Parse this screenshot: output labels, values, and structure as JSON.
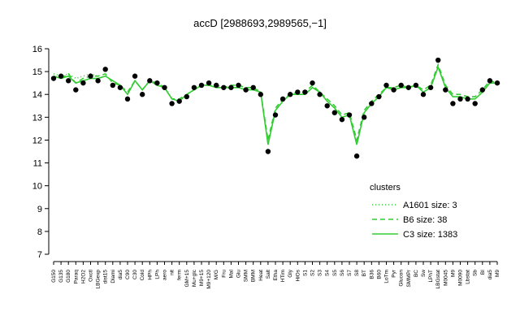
{
  "chart_data": {
    "type": "line",
    "title": "accD [2988693,2989565,−1]",
    "categories": [
      "G150",
      "G135",
      "G180",
      "Paraq",
      "H2O2",
      "Oxctl",
      "LBGexp",
      "dist15",
      "Diami",
      "dia5",
      "C90",
      "C30",
      "Cold",
      "HPh",
      "LPh",
      "aero",
      "nit",
      "ferm",
      "GM+15",
      "Mu+glc",
      "M9+15",
      "M9+120",
      "M/G",
      "Fru",
      "Mal",
      "Glu",
      "SMM",
      "BMM",
      "Heat",
      "Salt",
      "Etha",
      "HTim",
      "Gly",
      "HiOs",
      "S1",
      "S2",
      "S3",
      "S4",
      "S5",
      "S6",
      "S7",
      "S8",
      "BT",
      "B36",
      "B60",
      "LoTm",
      "Pyr",
      "Glucon",
      "SMMPr",
      "BC",
      "Sw",
      "LPhT",
      "LBGstat",
      "M0045",
      "M9",
      "M0090",
      "Lbstat",
      "Sb",
      "BI",
      "dia5",
      "M9"
    ],
    "points": {
      "color": "#000000",
      "values": [
        14.7,
        14.8,
        14.6,
        14.2,
        14.5,
        14.8,
        14.6,
        15.1,
        14.4,
        14.3,
        13.8,
        14.8,
        14.0,
        14.6,
        14.5,
        14.3,
        13.6,
        13.7,
        13.9,
        14.3,
        14.4,
        14.5,
        14.4,
        14.3,
        14.3,
        14.4,
        14.2,
        14.3,
        14.0,
        11.5,
        13.1,
        13.8,
        14.0,
        14.1,
        14.1,
        14.5,
        14.0,
        13.5,
        13.2,
        12.9,
        13.1,
        11.3,
        13.0,
        13.6,
        13.9,
        14.4,
        14.2,
        14.4,
        14.3,
        14.4,
        14.0,
        14.3,
        15.5,
        14.2,
        13.6,
        13.8,
        13.8,
        13.6,
        14.2,
        14.6,
        14.5
      ]
    },
    "series": [
      {
        "name": "A1601 size: 3",
        "color": "#33cc33",
        "dash": "1,3",
        "values": [
          14.9,
          14.8,
          14.9,
          14.7,
          14.8,
          14.9,
          14.8,
          null,
          null,
          null,
          null,
          null,
          null,
          null,
          null,
          null,
          null,
          null,
          null,
          null,
          null,
          null,
          null,
          null,
          null,
          null,
          null,
          null,
          null,
          null,
          null,
          null,
          null,
          null,
          null,
          null,
          null,
          null,
          null,
          null,
          null,
          null,
          null,
          null,
          null,
          null,
          null,
          null,
          null,
          null,
          null,
          null,
          null,
          null,
          null,
          null,
          null,
          null,
          null,
          null,
          null
        ]
      },
      {
        "name": "B6 size: 38",
        "color": "#33cc33",
        "dash": "6,4",
        "values": [
          14.8,
          14.7,
          14.9,
          14.5,
          14.7,
          14.8,
          14.8,
          14.9,
          14.5,
          14.4,
          14.1,
          14.6,
          14.2,
          14.6,
          14.5,
          14.3,
          13.8,
          13.8,
          14.0,
          14.2,
          14.4,
          14.4,
          14.4,
          14.3,
          14.4,
          14.4,
          14.3,
          14.3,
          14.1,
          12.0,
          13.4,
          13.8,
          14.0,
          14.1,
          14.1,
          14.4,
          14.1,
          13.8,
          13.5,
          13.1,
          13.2,
          12.0,
          13.3,
          13.7,
          14.0,
          14.3,
          14.3,
          14.4,
          14.3,
          14.4,
          14.2,
          14.4,
          15.3,
          14.4,
          14.0,
          14.0,
          13.9,
          13.9,
          14.2,
          14.6,
          14.5
        ]
      },
      {
        "name": "C3 size: 1383",
        "color": "#33cc33",
        "dash": "",
        "values": [
          14.8,
          14.7,
          14.8,
          14.5,
          14.6,
          14.7,
          14.7,
          14.8,
          14.6,
          14.4,
          14.0,
          14.6,
          14.2,
          14.6,
          14.4,
          14.3,
          13.8,
          13.7,
          14.0,
          14.2,
          14.4,
          14.4,
          14.3,
          14.3,
          14.3,
          14.3,
          14.2,
          14.2,
          14.1,
          11.8,
          13.3,
          13.7,
          14.0,
          14.0,
          14.0,
          14.3,
          14.1,
          13.7,
          13.4,
          13.0,
          13.1,
          11.8,
          13.2,
          13.6,
          13.9,
          14.3,
          14.2,
          14.3,
          14.3,
          14.4,
          14.1,
          14.3,
          15.2,
          14.3,
          13.9,
          13.9,
          13.8,
          13.8,
          14.1,
          14.5,
          14.5
        ]
      }
    ],
    "legend_title": "clusters",
    "ylim": [
      7,
      16
    ],
    "yticks": [
      7,
      8,
      9,
      10,
      11,
      12,
      13,
      14,
      15,
      16
    ]
  }
}
